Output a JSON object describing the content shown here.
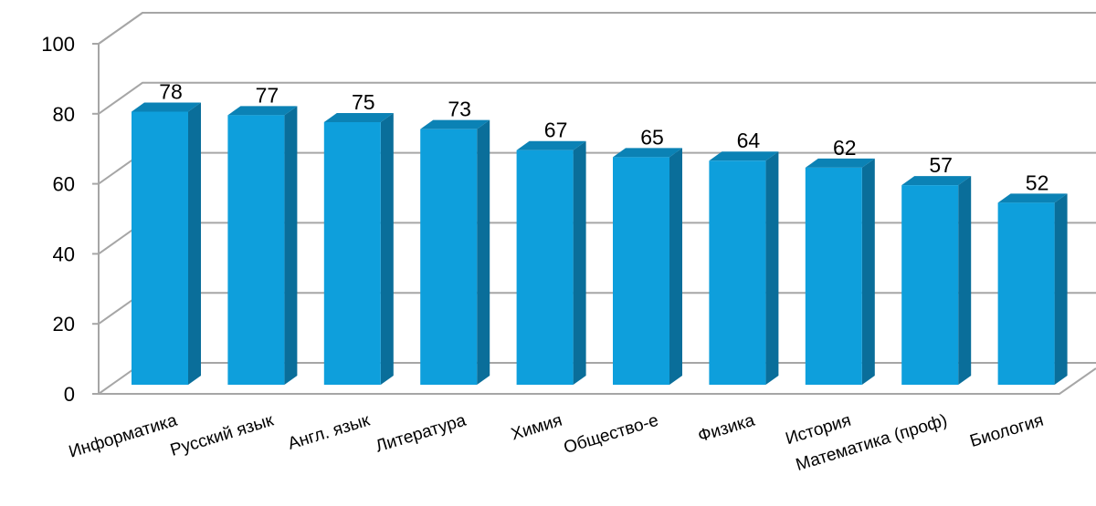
{
  "chart_data": {
    "type": "bar",
    "categories": [
      "Информатика",
      "Русский язык",
      "Англ. язык",
      "Литература",
      "Химия",
      "Общество-е",
      "Физика",
      "История",
      "Математика (проф)",
      "Биология"
    ],
    "values": [
      78,
      77,
      75,
      73,
      67,
      65,
      64,
      62,
      57,
      52
    ],
    "yticks": [
      "0",
      "20",
      "40",
      "60",
      "80",
      "100"
    ],
    "ylim": [
      0,
      100
    ],
    "grid": true,
    "legend": "none",
    "style": "3d-bars",
    "colors": {
      "front": "#0e9fdc",
      "side": "#0a6e9a",
      "top": "#0b82b5",
      "grid": "#a6a6a6",
      "wall_line": "#a6a6a6"
    }
  }
}
